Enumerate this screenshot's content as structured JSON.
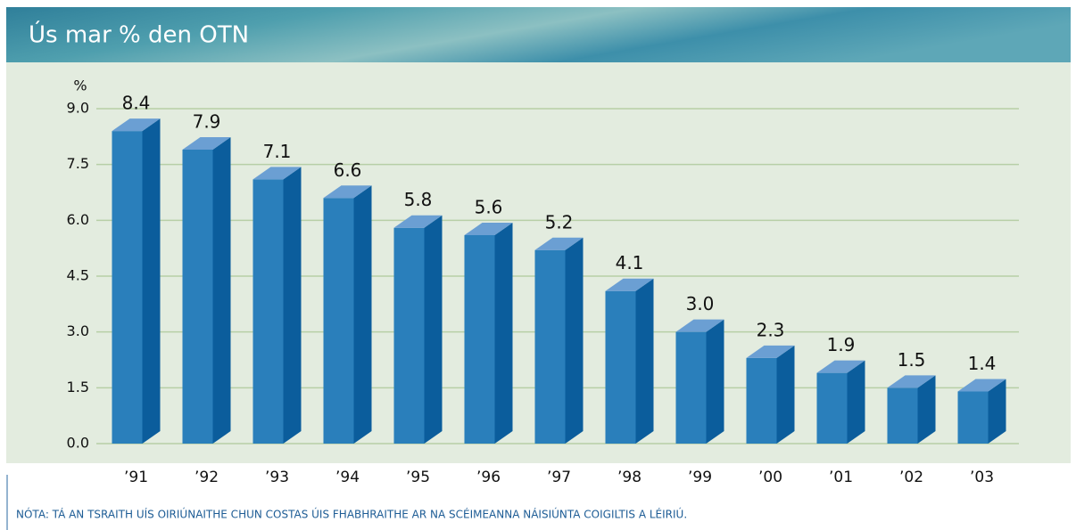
{
  "chart_data": {
    "type": "bar3d",
    "title": "Ús mar % den OTN",
    "ylabel": "%",
    "categories": [
      "’91",
      "’92",
      "’93",
      "’94",
      "’95",
      "’96",
      "’97",
      "’98",
      "’99",
      "’00",
      "’01",
      "’02",
      "’03"
    ],
    "values": [
      8.4,
      7.9,
      7.1,
      6.6,
      5.8,
      5.6,
      5.2,
      4.1,
      3.0,
      2.3,
      1.9,
      1.5,
      1.4
    ],
    "value_labels": [
      "8.4",
      "7.9",
      "7.1",
      "6.6",
      "5.8",
      "5.6",
      "5.2",
      "4.1",
      "3.0",
      "2.3",
      "1.9",
      "1.5",
      "1.4"
    ],
    "color": "#2a7fbb",
    "ylim": [
      0,
      9
    ],
    "yticks": [
      {
        "value": 0,
        "label": "0.0"
      },
      1.5,
      {
        "value": 3,
        "label": "3.0"
      },
      4.5,
      {
        "value": 6,
        "label": "6.0"
      },
      7.5,
      {
        "value": 9,
        "label": "9.0"
      }
    ],
    "grid": true,
    "note": "NÓTA: TÁ AN TSRAITH UÍS OIRIÚNAITHE CHUN COSTAS ÚIS FHABHRAITHE AR NA SCÉIMEANNA NÁISIÚNTA COIGILTIS A LÉIRIÚ."
  }
}
